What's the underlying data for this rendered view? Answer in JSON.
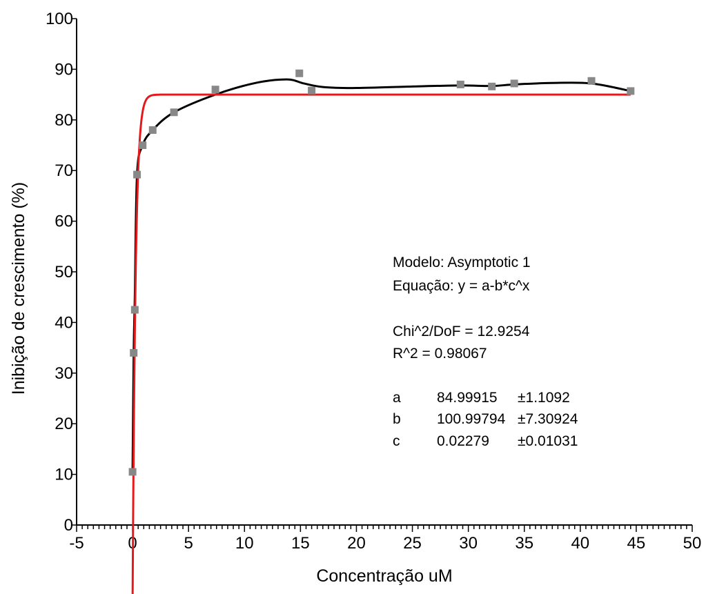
{
  "chart_data": {
    "type": "scatter",
    "xlabel": "Concentração uM",
    "ylabel": "Inibição de crescimento (%)",
    "xlim": [
      -5,
      50
    ],
    "ylim": [
      0,
      100
    ],
    "x_major_ticks": [
      -5,
      0,
      5,
      10,
      15,
      20,
      25,
      30,
      35,
      40,
      45,
      50
    ],
    "x_minor_step": 0.5,
    "y_major_ticks": [
      0,
      10,
      20,
      30,
      40,
      50,
      60,
      70,
      80,
      90,
      100
    ],
    "grid": false,
    "colors": {
      "points": "#888888",
      "smooth_line": "#000000",
      "fit_line": "#e31a1c"
    },
    "series": [
      {
        "kind": "points",
        "x": [
          0.0,
          0.1,
          0.2,
          0.4,
          0.9,
          1.8,
          3.7,
          7.4,
          14.9,
          16.0,
          29.3,
          32.1,
          34.1,
          41.0,
          44.5
        ],
        "y": [
          10.5,
          34.0,
          42.5,
          69.2,
          75.0,
          78.0,
          81.5,
          86.0,
          89.2,
          85.8,
          87.0,
          86.6,
          87.2,
          87.7,
          85.7
        ]
      },
      {
        "kind": "smooth",
        "x": [
          0.0,
          0.1,
          0.2,
          0.4,
          0.9,
          1.8,
          3.7,
          7.4,
          11.0,
          13.8,
          15.3,
          17.0,
          20.0,
          25.0,
          29.3,
          32.1,
          34.1,
          37.5,
          41.0,
          44.5
        ],
        "y": [
          10.5,
          34.0,
          45.0,
          69.2,
          75.0,
          78.0,
          81.5,
          85.0,
          87.3,
          88.0,
          87.2,
          86.5,
          86.3,
          86.6,
          86.8,
          86.7,
          87.0,
          87.3,
          87.2,
          85.7
        ]
      },
      {
        "kind": "fit",
        "model": "y = a - b*c^x",
        "a": 84.99915,
        "b": 100.99794,
        "c": 0.02279,
        "x_range": [
          0.0,
          44.5
        ]
      }
    ],
    "annotations": {
      "model_line": "Modelo:  Asymptotic 1",
      "equation_line": "Equação: y = a-b*c^x",
      "chi_line": "Chi^2/DoF   = 12.9254",
      "r2_line": "R^2   =  0.98067",
      "params": [
        {
          "name": "a",
          "value": "84.99915",
          "err": "±1.1092"
        },
        {
          "name": "b",
          "value": "100.99794",
          "err": "±7.30924"
        },
        {
          "name": "c",
          "value": "0.02279",
          "err": "±0.01031"
        }
      ]
    }
  }
}
